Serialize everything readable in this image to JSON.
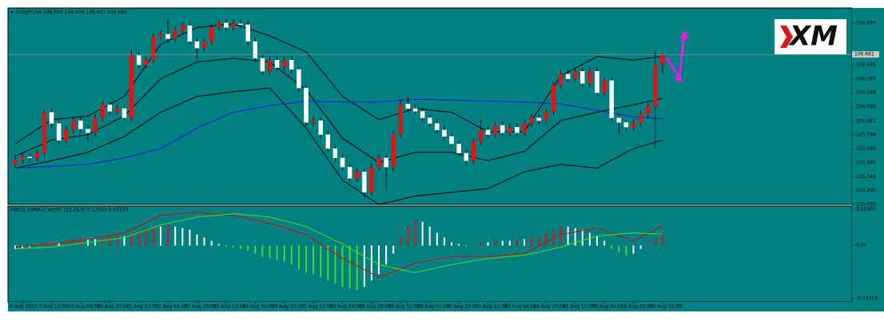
{
  "logo": "XM",
  "chart_data": [
    {
      "type": "candlestick",
      "title": "USDJPY,H4 106.550 106.674 106.455 106.661",
      "categories": [
        null,
        "6 Aug 2020",
        null,
        null,
        null,
        "7 Aug 12:00",
        null,
        null,
        null,
        "10 Aug 04:00",
        null,
        null,
        null,
        "10 Aug 20:00",
        null,
        null,
        null,
        "11 Aug 12:00",
        null,
        null,
        null,
        "12 Aug 04:00",
        null,
        null,
        null,
        "12 Aug 20:00",
        null,
        null,
        null,
        "13 Aug 12:00",
        null,
        null,
        null,
        "14 Aug 04:00",
        null,
        null,
        null,
        "14 Aug 20:00",
        null,
        null,
        null,
        "17 Aug 12:00",
        null,
        null,
        null,
        "18 Aug 04:00",
        null,
        null,
        null,
        "18 Aug 20:00",
        null,
        null,
        null,
        "19 Aug 12:00",
        null,
        null,
        null,
        "20 Aug 04:00",
        null,
        null,
        null,
        "20 Aug 20:00",
        null,
        null,
        null,
        "21 Aug 12:00",
        null,
        null,
        null,
        "24 Aug 04:00",
        null,
        null,
        null,
        "24 Aug 20:00",
        null,
        null,
        null,
        "25 Aug 12:00",
        null,
        null,
        null,
        "26 Aug 04:00",
        null,
        null,
        null,
        "26 Aug 20:00",
        null,
        null,
        null,
        "27 Aug 12:00"
      ],
      "open": [
        105.48,
        105.53,
        105.56,
        105.55,
        105.6,
        106.04,
        105.92,
        105.74,
        105.85,
        105.95,
        105.86,
        105.82,
        105.98,
        106.12,
        106.05,
        106.08,
        105.98,
        106.65,
        106.55,
        106.6,
        106.85,
        106.88,
        106.83,
        106.92,
        106.97,
        106.8,
        106.73,
        106.8,
        106.95,
        107.0,
        106.95,
        106.99,
        106.98,
        106.8,
        106.62,
        106.48,
        106.6,
        106.52,
        106.6,
        106.5,
        106.3,
        105.93,
        105.95,
        105.8,
        105.65,
        105.55,
        105.45,
        105.33,
        105.4,
        105.18,
        105.45,
        105.55,
        105.45,
        105.8,
        106.13,
        106.08,
        106.05,
        105.98,
        105.92,
        105.85,
        105.78,
        105.7,
        105.6,
        105.52,
        105.72,
        105.85,
        105.8,
        105.9,
        105.82,
        105.88,
        105.82,
        105.92,
        105.98,
        105.95,
        106.05,
        106.33,
        106.45,
        106.4,
        106.48,
        106.35,
        106.48,
        106.25,
        106.38,
        105.98,
        105.93,
        105.88,
        105.92,
        106.02,
        106.1,
        106.55
      ],
      "high": [
        105.57,
        105.6,
        105.6,
        105.64,
        106.08,
        106.08,
        105.96,
        105.89,
        105.99,
        105.99,
        105.9,
        106.02,
        106.16,
        106.16,
        106.12,
        106.12,
        106.72,
        106.69,
        106.64,
        106.89,
        106.92,
        107.05,
        106.96,
        107.01,
        107.01,
        106.84,
        106.84,
        106.99,
        107.04,
        107.04,
        107.03,
        107.03,
        107.02,
        106.84,
        106.66,
        106.64,
        106.64,
        106.64,
        106.64,
        106.54,
        106.34,
        105.99,
        105.99,
        105.84,
        105.69,
        105.59,
        105.49,
        105.44,
        105.44,
        105.49,
        105.59,
        105.59,
        105.84,
        106.17,
        106.2,
        106.12,
        106.09,
        106.02,
        105.96,
        105.89,
        105.82,
        105.74,
        105.64,
        105.76,
        105.96,
        105.89,
        105.94,
        105.94,
        105.92,
        105.92,
        105.96,
        106.02,
        106.02,
        106.09,
        106.37,
        106.49,
        106.49,
        106.52,
        106.52,
        106.52,
        106.52,
        106.42,
        106.42,
        106.02,
        105.97,
        105.96,
        106.06,
        106.14,
        106.69,
        106.674
      ],
      "low": [
        105.44,
        105.49,
        105.51,
        105.51,
        105.56,
        105.88,
        105.7,
        105.7,
        105.81,
        105.82,
        105.72,
        105.78,
        105.94,
        106.01,
        106.01,
        105.94,
        105.94,
        106.51,
        106.51,
        106.56,
        106.81,
        106.79,
        106.79,
        106.88,
        106.76,
        106.6,
        106.69,
        106.76,
        106.91,
        106.91,
        106.91,
        106.94,
        106.76,
        106.58,
        106.44,
        106.44,
        106.48,
        106.48,
        106.46,
        106.26,
        105.89,
        105.89,
        105.76,
        105.61,
        105.51,
        105.41,
        105.29,
        105.29,
        105.12,
        105.14,
        105.41,
        105.2,
        105.41,
        105.76,
        106.04,
        106.01,
        105.94,
        105.88,
        105.81,
        105.74,
        105.66,
        105.56,
        105.46,
        105.48,
        105.68,
        105.76,
        105.76,
        105.78,
        105.78,
        105.78,
        105.78,
        105.88,
        105.91,
        105.91,
        106.01,
        106.29,
        106.36,
        106.36,
        106.31,
        106.31,
        106.21,
        106.21,
        105.94,
        105.8,
        105.84,
        105.84,
        105.88,
        105.98,
        105.65,
        106.455
      ],
      "close": [
        105.53,
        105.56,
        105.55,
        105.6,
        106.04,
        105.92,
        105.74,
        105.85,
        105.95,
        105.86,
        105.82,
        105.98,
        106.12,
        106.05,
        106.08,
        105.98,
        106.65,
        106.55,
        106.6,
        106.85,
        106.88,
        106.83,
        106.92,
        106.97,
        106.8,
        106.73,
        106.8,
        106.95,
        107.0,
        106.95,
        106.99,
        106.98,
        106.8,
        106.62,
        106.48,
        106.6,
        106.52,
        106.6,
        106.5,
        106.3,
        105.93,
        105.95,
        105.8,
        105.65,
        105.55,
        105.45,
        105.33,
        105.4,
        105.18,
        105.45,
        105.55,
        105.45,
        105.8,
        106.13,
        106.08,
        106.05,
        105.98,
        105.92,
        105.85,
        105.78,
        105.7,
        105.6,
        105.52,
        105.72,
        105.85,
        105.8,
        105.9,
        105.82,
        105.88,
        105.82,
        105.92,
        105.98,
        105.95,
        106.05,
        106.33,
        106.45,
        106.4,
        106.48,
        106.35,
        106.48,
        106.25,
        106.38,
        105.98,
        105.93,
        105.88,
        105.92,
        106.02,
        106.1,
        106.55,
        106.661
      ],
      "up_color": "#d81818",
      "down_color": "#ffffff",
      "wick_color": "#000000",
      "lines": [
        {
          "color": "#000000",
          "x": [
            0,
            5,
            10,
            15,
            20,
            25,
            30,
            35,
            40,
            45,
            50,
            55,
            60,
            65,
            70,
            75,
            80,
            85,
            89
          ],
          "values": [
            105.7,
            105.96,
            106.0,
            106.21,
            106.77,
            106.95,
            106.99,
            106.86,
            106.69,
            106.21,
            105.96,
            106.08,
            106.04,
            105.83,
            105.83,
            106.43,
            106.64,
            106.6,
            106.64
          ]
        },
        {
          "color": "#000000",
          "x": [
            0,
            5,
            10,
            15,
            20,
            25,
            30,
            35,
            40,
            45,
            50,
            55,
            60,
            65,
            70,
            75,
            80,
            85,
            89
          ],
          "values": [
            105.57,
            105.74,
            105.8,
            106.0,
            106.4,
            106.58,
            106.62,
            106.58,
            106.28,
            105.76,
            105.5,
            105.61,
            105.61,
            105.52,
            105.62,
            105.95,
            106.04,
            106.12,
            106.19
          ]
        },
        {
          "color": "#000000",
          "x": [
            0,
            5,
            10,
            15,
            20,
            25,
            30,
            35,
            40,
            45,
            50,
            55,
            60,
            65,
            70,
            75,
            80,
            85,
            89
          ],
          "values": [
            105.44,
            105.52,
            105.61,
            105.78,
            106.04,
            106.21,
            106.26,
            106.3,
            105.87,
            105.31,
            105.05,
            105.14,
            105.18,
            105.22,
            105.4,
            105.48,
            105.44,
            105.65,
            105.74
          ]
        },
        {
          "color": "#1a1ad8",
          "x": [
            0,
            5,
            10,
            15,
            20,
            25,
            30,
            35,
            40,
            45,
            50,
            55,
            60,
            65,
            70,
            75,
            80,
            85,
            89
          ],
          "values": [
            105.44,
            105.46,
            105.48,
            105.55,
            105.65,
            105.87,
            106.04,
            106.11,
            106.16,
            106.15,
            106.15,
            106.18,
            106.17,
            106.16,
            106.15,
            106.13,
            106.06,
            105.99,
            105.97
          ]
        }
      ],
      "current_price": 106.661,
      "current_price_color": "#a0a0a0",
      "ylim": [
        105.05,
        107.16
      ],
      "yticks": [
        {
          "value": 105.05,
          "label": "105.050"
        },
        {
          "value": 105.2,
          "label": "105.200"
        },
        105.345,
        105.495,
        105.645,
        105.796,
        105.941,
        106.095,
        106.249,
        106.395,
        106.545,
        106.995
      ]
    },
    {
      "type": "bar",
      "title": "MACD_OsMA [CurrTF] (12,26,9) 0.12512 0.07279",
      "values": [
        -0.02,
        -0.02,
        -0.01,
        0.0,
        0.02,
        0.03,
        0.02,
        0.03,
        0.04,
        0.05,
        0.04,
        0.04,
        0.05,
        0.06,
        0.07,
        0.06,
        0.08,
        0.09,
        0.11,
        0.12,
        0.12,
        0.13,
        0.12,
        0.11,
        0.1,
        0.07,
        0.05,
        0.03,
        0.01,
        0.0,
        -0.01,
        -0.02,
        -0.03,
        -0.05,
        -0.07,
        -0.08,
        -0.09,
        -0.1,
        -0.12,
        -0.15,
        -0.17,
        -0.18,
        -0.2,
        -0.22,
        -0.24,
        -0.26,
        -0.27,
        -0.28,
        -0.26,
        -0.22,
        -0.18,
        -0.12,
        -0.05,
        0.06,
        0.12,
        0.16,
        0.15,
        0.12,
        0.08,
        0.05,
        0.02,
        0.01,
        0.0,
        0.01,
        0.02,
        0.02,
        0.03,
        0.03,
        0.03,
        0.04,
        0.04,
        0.05,
        0.06,
        0.08,
        0.1,
        0.12,
        0.12,
        0.11,
        0.1,
        0.08,
        0.06,
        0.03,
        -0.02,
        -0.04,
        -0.06,
        -0.05,
        -0.02,
        0.01,
        0.05,
        0.07
      ],
      "rising_color": "#d81818",
      "falling_color": "#ffffff",
      "negative_falling_color": "#4ad82a",
      "lines": [
        {
          "color": "#c81010",
          "x": [
            0,
            5,
            10,
            15,
            20,
            25,
            30,
            35,
            40,
            45,
            50,
            55,
            60,
            65,
            70,
            75,
            80,
            85,
            89
          ],
          "values": [
            -0.01,
            0.01,
            0.04,
            0.08,
            0.19,
            0.21,
            0.19,
            0.14,
            0.07,
            -0.08,
            -0.2,
            -0.11,
            -0.07,
            -0.07,
            -0.05,
            0.07,
            0.11,
            0.03,
            0.12512
          ]
        },
        {
          "color": "#44e020",
          "x": [
            0,
            5,
            10,
            15,
            20,
            25,
            30,
            35,
            40,
            45,
            50,
            55,
            60,
            65,
            70,
            75,
            80,
            85,
            89
          ],
          "values": [
            -0.02,
            -0.01,
            0.02,
            0.05,
            0.13,
            0.18,
            0.2,
            0.18,
            0.12,
            0.01,
            -0.12,
            -0.17,
            -0.12,
            -0.08,
            -0.06,
            -0.01,
            0.06,
            0.08,
            0.07279
          ]
        }
      ],
      "ylim": [
        -0.33415,
        0.22901
      ],
      "yticks": [
        0.22901,
        {
          "value": 0,
          "label": "0.00"
        },
        -0.33415
      ]
    }
  ]
}
